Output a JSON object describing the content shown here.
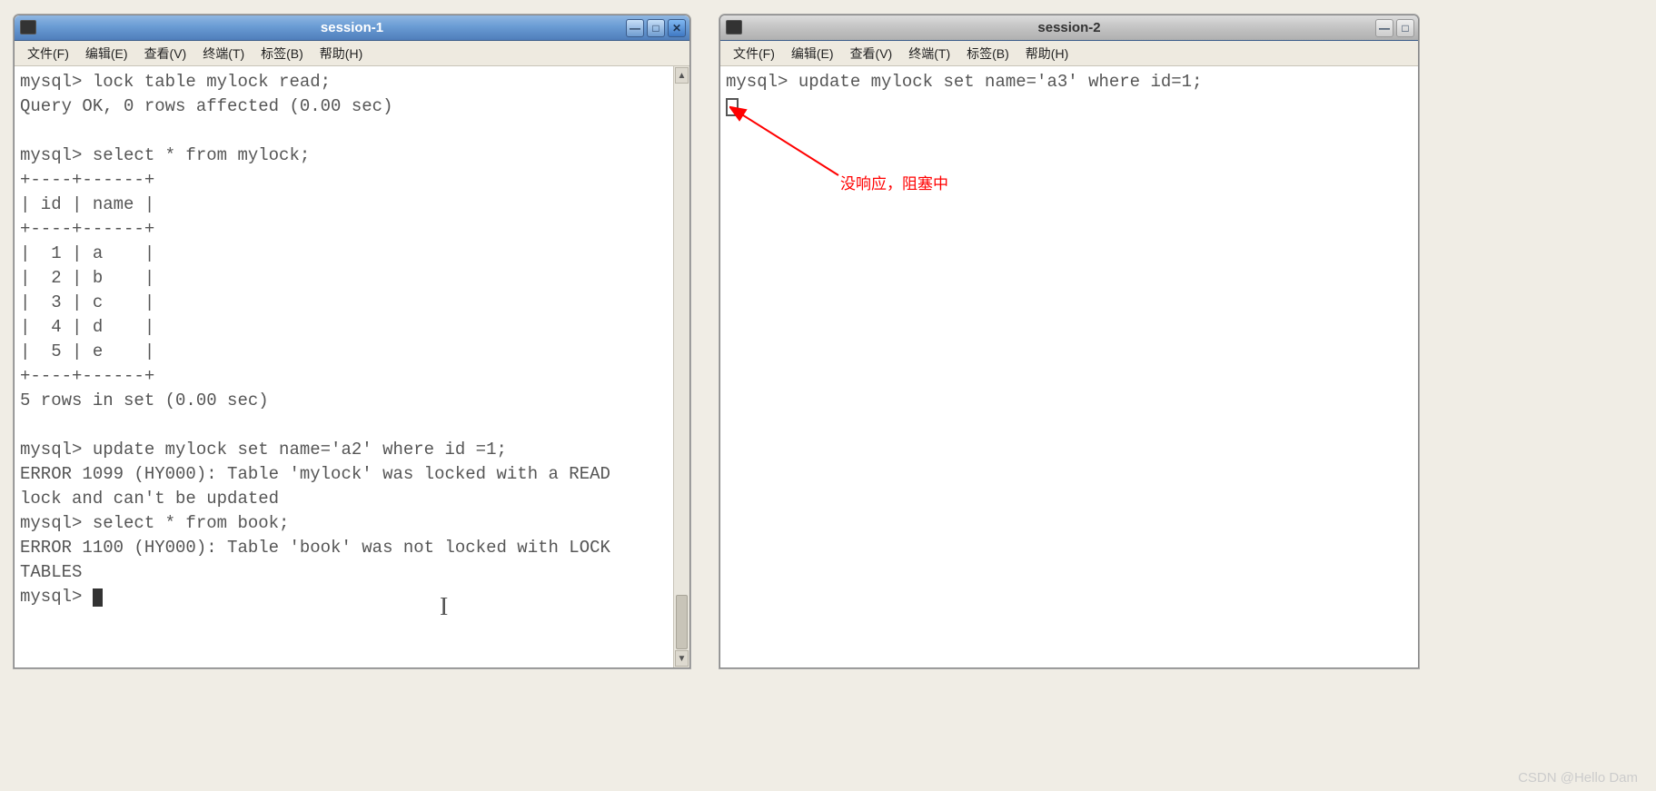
{
  "window1": {
    "title": "session-1",
    "menu": [
      "文件(F)",
      "编辑(E)",
      "查看(V)",
      "终端(T)",
      "标签(B)",
      "帮助(H)"
    ],
    "lines": [
      "mysql> lock table mylock read;",
      "Query OK, 0 rows affected (0.00 sec)",
      "",
      "mysql> select * from mylock;",
      "+----+------+",
      "| id | name |",
      "+----+------+",
      "|  1 | a    |",
      "|  2 | b    |",
      "|  3 | c    |",
      "|  4 | d    |",
      "|  5 | e    |",
      "+----+------+",
      "5 rows in set (0.00 sec)",
      "",
      "mysql> update mylock set name='a2' where id =1;",
      "ERROR 1099 (HY000): Table 'mylock' was locked with a READ",
      "lock and can't be updated",
      "mysql> select * from book;",
      "ERROR 1100 (HY000): Table 'book' was not locked with LOCK",
      "TABLES"
    ],
    "prompt": "mysql> "
  },
  "window2": {
    "title": "session-2",
    "menu": [
      "文件(F)",
      "编辑(E)",
      "查看(V)",
      "终端(T)",
      "标签(B)",
      "帮助(H)"
    ],
    "line1": "mysql> update mylock set name='a3' where id=1;"
  },
  "annotation": {
    "text": "没响应，阻塞中"
  },
  "watermark": "CSDN @Hello Dam"
}
